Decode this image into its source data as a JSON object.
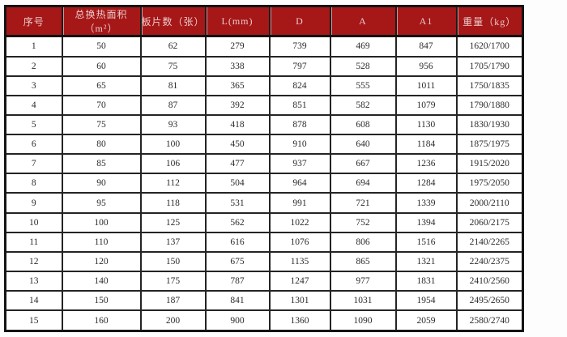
{
  "table": {
    "headers": [
      "序号",
      "总换热面积（m²）",
      "板片数（张）",
      "L(mm)",
      "D",
      "A",
      "A1",
      "重量（kg）"
    ],
    "rows": [
      [
        "1",
        "50",
        "62",
        "279",
        "739",
        "469",
        "847",
        "1620/1700"
      ],
      [
        "2",
        "60",
        "75",
        "338",
        "797",
        "528",
        "956",
        "1705/1790"
      ],
      [
        "3",
        "65",
        "81",
        "365",
        "824",
        "555",
        "1011",
        "1750/1835"
      ],
      [
        "4",
        "70",
        "87",
        "392",
        "851",
        "582",
        "1079",
        "1790/1880"
      ],
      [
        "5",
        "75",
        "93",
        "418",
        "878",
        "608",
        "1130",
        "1830/1930"
      ],
      [
        "6",
        "80",
        "100",
        "450",
        "910",
        "640",
        "1184",
        "1875/1975"
      ],
      [
        "7",
        "85",
        "106",
        "477",
        "937",
        "667",
        "1236",
        "1915/2020"
      ],
      [
        "8",
        "90",
        "112",
        "504",
        "964",
        "694",
        "1284",
        "1975/2050"
      ],
      [
        "9",
        "95",
        "118",
        "531",
        "991",
        "721",
        "1339",
        "2000/2110"
      ],
      [
        "10",
        "100",
        "125",
        "562",
        "1022",
        "752",
        "1394",
        "2060/2175"
      ],
      [
        "11",
        "110",
        "137",
        "616",
        "1076",
        "806",
        "1516",
        "2140/2265"
      ],
      [
        "12",
        "120",
        "150",
        "675",
        "1135",
        "865",
        "1321",
        "2240/2375"
      ],
      [
        "13",
        "140",
        "175",
        "787",
        "1247",
        "977",
        "1831",
        "2410/2560"
      ],
      [
        "14",
        "150",
        "187",
        "841",
        "1301",
        "1031",
        "1954",
        "2495/2650"
      ],
      [
        "15",
        "160",
        "200",
        "900",
        "1360",
        "1090",
        "2059",
        "2580/2740"
      ]
    ]
  },
  "colors": {
    "header_background": "#a61717",
    "header_text": "#eccaca",
    "grid_border": "#242424",
    "body_text": "#2b2b2b",
    "page_background": "#fdfdfd"
  }
}
